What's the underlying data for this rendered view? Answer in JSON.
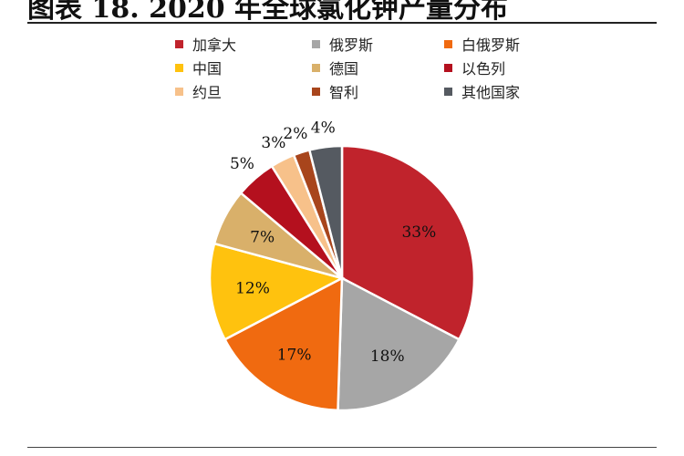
{
  "title": "图表 18. 2020 年全球氯化钾产量分布",
  "chart_data": {
    "type": "pie",
    "categories": [
      "加拿大",
      "俄罗斯",
      "白俄罗斯",
      "中国",
      "德国",
      "以色列",
      "约旦",
      "智利",
      "其他国家"
    ],
    "values": [
      33,
      18,
      17,
      12,
      7,
      5,
      3,
      2,
      4
    ],
    "value_labels": [
      "33%",
      "18%",
      "17%",
      "12%",
      "7%",
      "5%",
      "3%",
      "2%",
      "4%"
    ],
    "colors": [
      "#c0232c",
      "#a6a6a6",
      "#f06a10",
      "#ffc20e",
      "#d9b06a",
      "#b4101e",
      "#f7c18a",
      "#a8451c",
      "#555a61"
    ],
    "legend_position": "top"
  }
}
